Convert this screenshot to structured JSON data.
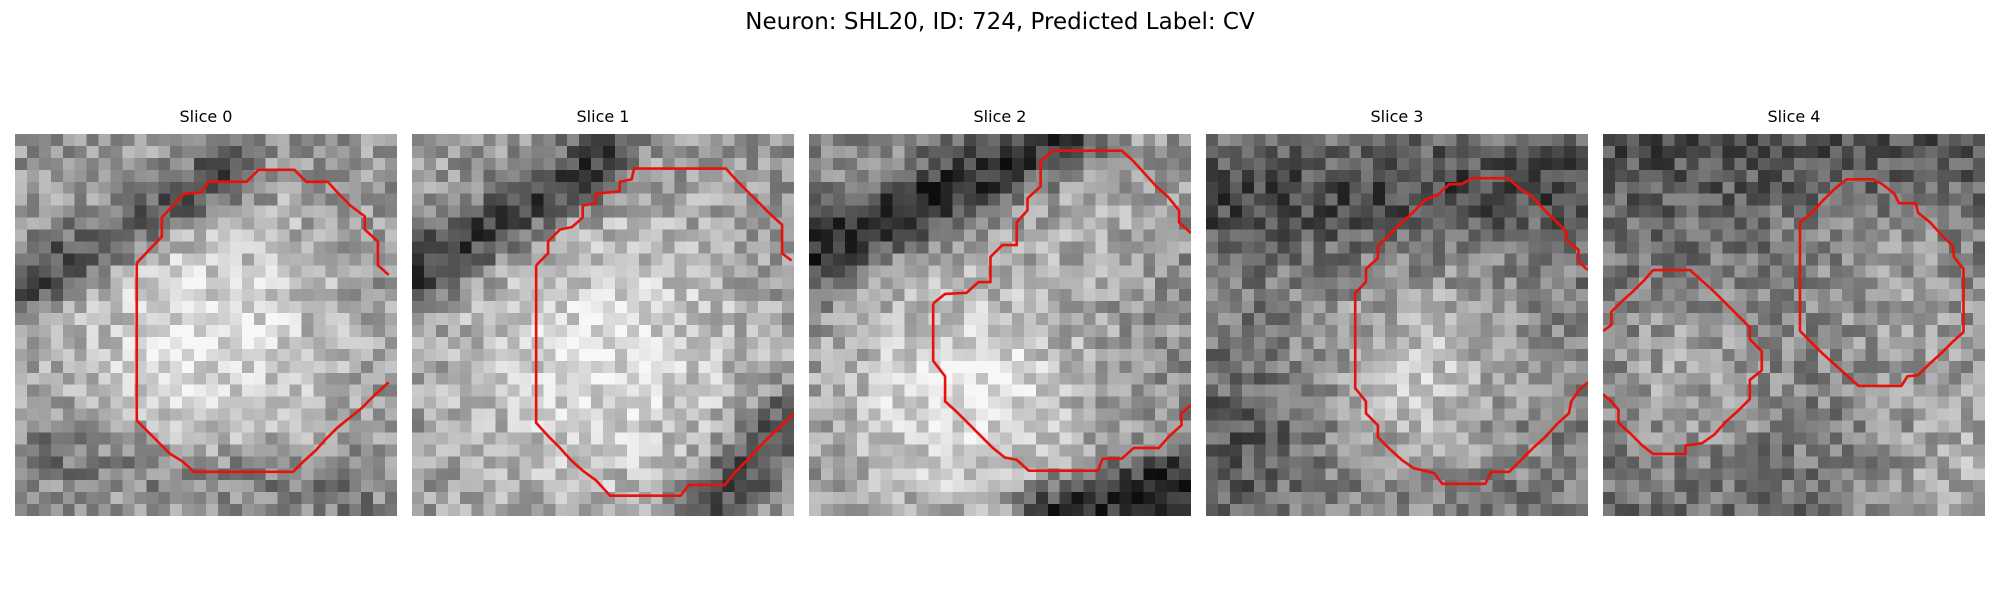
{
  "figure": {
    "title": "Neuron: SHL20, ID: 724, Predicted Label: CV",
    "outline_color": "#e8120c"
  },
  "panels": [
    {
      "title": "Slice 0"
    },
    {
      "title": "Slice 1"
    },
    {
      "title": "Slice 2"
    },
    {
      "title": "Slice 3"
    },
    {
      "title": "Slice 4"
    }
  ]
}
